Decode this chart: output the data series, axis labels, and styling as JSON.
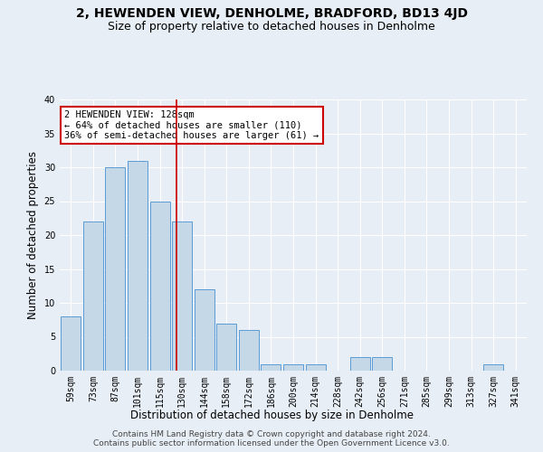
{
  "title": "2, HEWENDEN VIEW, DENHOLME, BRADFORD, BD13 4JD",
  "subtitle": "Size of property relative to detached houses in Denholme",
  "xlabel": "Distribution of detached houses by size in Denholme",
  "ylabel": "Number of detached properties",
  "categories": [
    "59sqm",
    "73sqm",
    "87sqm",
    "101sqm",
    "115sqm",
    "130sqm",
    "144sqm",
    "158sqm",
    "172sqm",
    "186sqm",
    "200sqm",
    "214sqm",
    "228sqm",
    "242sqm",
    "256sqm",
    "271sqm",
    "285sqm",
    "299sqm",
    "313sqm",
    "327sqm",
    "341sqm"
  ],
  "values": [
    8,
    22,
    30,
    31,
    25,
    22,
    12,
    7,
    6,
    1,
    1,
    1,
    0,
    2,
    2,
    0,
    0,
    0,
    0,
    1,
    0
  ],
  "bar_color": "#c5d8e8",
  "bar_edgecolor": "#5b9bd5",
  "background_color": "#e8eef5",
  "red_line_x": 4.77,
  "annotation_text": "2 HEWENDEN VIEW: 128sqm\n← 64% of detached houses are smaller (110)\n36% of semi-detached houses are larger (61) →",
  "annotation_box_color": "#ffffff",
  "annotation_box_edgecolor": "#cc0000",
  "red_line_color": "#cc0000",
  "ylim": [
    0,
    40
  ],
  "yticks": [
    0,
    5,
    10,
    15,
    20,
    25,
    30,
    35,
    40
  ],
  "footer_line1": "Contains HM Land Registry data © Crown copyright and database right 2024.",
  "footer_line2": "Contains public sector information licensed under the Open Government Licence v3.0.",
  "title_fontsize": 10,
  "subtitle_fontsize": 9,
  "xlabel_fontsize": 8.5,
  "ylabel_fontsize": 8.5,
  "tick_fontsize": 7,
  "footer_fontsize": 6.5,
  "annotation_fontsize": 7.5
}
